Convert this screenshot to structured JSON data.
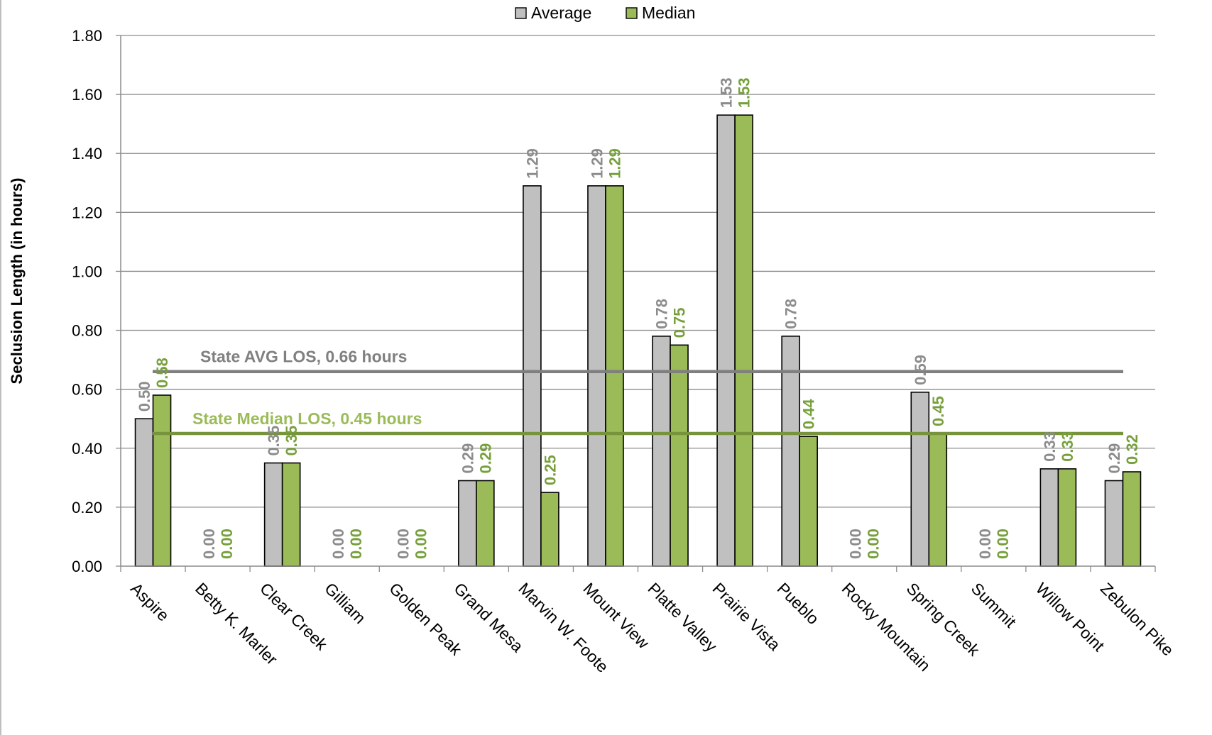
{
  "chart_data": {
    "type": "bar",
    "title": "",
    "xlabel": "",
    "ylabel": "Seclusion Length (in hours)",
    "ylim": [
      0,
      1.8
    ],
    "yticks": [
      "0.00",
      "0.20",
      "0.40",
      "0.60",
      "0.80",
      "1.00",
      "1.20",
      "1.40",
      "1.60",
      "1.80"
    ],
    "grid": true,
    "legend_position": "top-center",
    "categories": [
      "Aspire",
      "Betty K. Marler",
      "Clear Creek",
      "Gilliam",
      "Golden Peak",
      "Grand Mesa",
      "Marvin W. Foote",
      "Mount View",
      "Platte Valley",
      "Prairie Vista",
      "Pueblo",
      "Rocky Mountain",
      "Spring Creek",
      "Summit",
      "Willow Point",
      "Zebulon Pike"
    ],
    "series": [
      {
        "name": "Average",
        "color": "#c0c0c0",
        "label_color": "#8c8c8c",
        "values": [
          0.5,
          0.0,
          0.35,
          0.0,
          0.0,
          0.29,
          1.29,
          1.29,
          0.78,
          1.53,
          0.78,
          0.0,
          0.59,
          0.0,
          0.33,
          0.29
        ],
        "labels": [
          "0.50",
          "0.00",
          "0.35",
          "0.00",
          "0.00",
          "0.29",
          "1.29",
          "1.29",
          "0.78",
          "1.53",
          "0.78",
          "0.00",
          "0.59",
          "0.00",
          "0.33",
          "0.29"
        ]
      },
      {
        "name": "Median",
        "color": "#9bbb59",
        "label_color": "#77a03c",
        "values": [
          0.58,
          0.0,
          0.35,
          0.0,
          0.0,
          0.29,
          0.25,
          1.29,
          0.75,
          1.53,
          0.44,
          0.0,
          0.45,
          0.0,
          0.33,
          0.32
        ],
        "labels": [
          "0.58",
          "0.00",
          "0.35",
          "0.00",
          "0.00",
          "0.29",
          "0.25",
          "1.29",
          "0.75",
          "1.53",
          "0.44",
          "0.00",
          "0.45",
          "0.00",
          "0.33",
          "0.32"
        ]
      }
    ],
    "reference_lines": [
      {
        "name": "State AVG LOS, 0.66 hours",
        "value": 0.66,
        "color": "#7f7f7f",
        "label_color": "#808080"
      },
      {
        "name": "State Median LOS, 0.45 hours",
        "value": 0.45,
        "color": "#77933c",
        "label_color": "#9bbb59"
      }
    ]
  }
}
